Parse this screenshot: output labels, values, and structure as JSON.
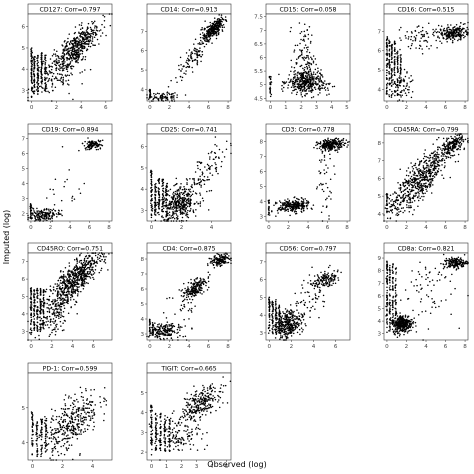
{
  "figure": {
    "xlabel": "Observed (log)",
    "ylabel": "Imputed (log)"
  },
  "chart_data": [
    {
      "type": "scatter",
      "title": "CD127: Corr=0.797",
      "xlim": [
        -0.3,
        6.5
      ],
      "ylim": [
        2.5,
        6.6
      ],
      "xticks": [
        0,
        2,
        4,
        6
      ],
      "yticks": [
        3,
        4,
        5,
        6
      ],
      "clusters": [
        {
          "x": [
            0,
            0
          ],
          "y": [
            2.6,
            5.0
          ],
          "n": 70,
          "kind": "vline"
        },
        {
          "x": [
            0.2,
            0.2
          ],
          "y": [
            2.7,
            4.6
          ],
          "n": 50,
          "kind": "vline"
        },
        {
          "x": [
            0.5,
            0.5
          ],
          "y": [
            2.8,
            4.7
          ],
          "n": 50,
          "kind": "vline"
        },
        {
          "x": [
            0.8,
            0.8
          ],
          "y": [
            2.9,
            4.8
          ],
          "n": 50,
          "kind": "vline"
        },
        {
          "x": [
            1.1,
            1.1
          ],
          "y": [
            2.9,
            4.7
          ],
          "n": 45,
          "kind": "vline"
        },
        {
          "cx": 3.6,
          "cy": 5.0,
          "sx": 0.9,
          "sy": 0.55,
          "rho": 0.75,
          "n": 450
        },
        {
          "cx": 2.0,
          "cy": 3.7,
          "sx": 1.0,
          "sy": 0.5,
          "rho": 0.3,
          "n": 120
        }
      ]
    },
    {
      "type": "scatter",
      "title": "CD14: Corr=0.913",
      "xlim": [
        -0.3,
        8.3
      ],
      "ylim": [
        3.4,
        7.9
      ],
      "xticks": [
        0,
        2,
        4,
        6,
        8
      ],
      "yticks": [
        4,
        5,
        6,
        7
      ],
      "clusters": [
        {
          "x": [
            0,
            0
          ],
          "y": [
            3.5,
            4.0
          ],
          "n": 30,
          "kind": "vline"
        },
        {
          "cx": 1.5,
          "cy": 3.6,
          "sx": 0.9,
          "sy": 0.12,
          "rho": 0.1,
          "n": 80
        },
        {
          "cx": 6.5,
          "cy": 7.1,
          "sx": 0.55,
          "sy": 0.3,
          "rho": 0.7,
          "n": 260
        },
        {
          "cx": 4.5,
          "cy": 5.7,
          "sx": 1.0,
          "sy": 0.65,
          "rho": 0.85,
          "n": 110
        }
      ]
    },
    {
      "type": "scatter",
      "title": "CD15: Corr=0.058",
      "xlim": [
        -0.3,
        5.2
      ],
      "ylim": [
        4.4,
        7.6
      ],
      "xticks": [
        0,
        1,
        2,
        3,
        4,
        5
      ],
      "yticks": [
        4.5,
        5.0,
        5.5,
        6.0,
        6.5,
        7.0,
        7.5
      ],
      "clusters": [
        {
          "x": [
            0,
            0
          ],
          "y": [
            4.5,
            5.3
          ],
          "n": 25,
          "kind": "vline"
        },
        {
          "cx": 2.2,
          "cy": 5.1,
          "sx": 0.55,
          "sy": 0.22,
          "rho": 0.0,
          "n": 300
        },
        {
          "cx": 2.2,
          "cy": 6.0,
          "sx": 0.35,
          "sy": 0.6,
          "rho": 0.0,
          "n": 110
        },
        {
          "cx": 3.0,
          "cy": 5.0,
          "sx": 0.6,
          "sy": 0.2,
          "rho": 0.0,
          "n": 60
        }
      ]
    },
    {
      "type": "scatter",
      "title": "CD16: Corr=0.515",
      "xlim": [
        -0.3,
        8.3
      ],
      "ylim": [
        3.4,
        7.9
      ],
      "xticks": [
        0,
        2,
        4,
        6,
        8
      ],
      "yticks": [
        4,
        5,
        6,
        7
      ],
      "clusters": [
        {
          "x": [
            0,
            0
          ],
          "y": [
            3.6,
            6.8
          ],
          "n": 60,
          "kind": "vline"
        },
        {
          "x": [
            0.25,
            0.25
          ],
          "y": [
            3.6,
            6.6
          ],
          "n": 45,
          "kind": "vline"
        },
        {
          "x": [
            0.5,
            0.5
          ],
          "y": [
            3.6,
            6.4
          ],
          "n": 45,
          "kind": "vline"
        },
        {
          "x": [
            0.8,
            0.8
          ],
          "y": [
            3.6,
            6.5
          ],
          "n": 45,
          "kind": "vline"
        },
        {
          "x": [
            1.1,
            1.1
          ],
          "y": [
            3.6,
            6.0
          ],
          "n": 40,
          "kind": "vline"
        },
        {
          "x": [
            1.4,
            1.4
          ],
          "y": [
            3.6,
            5.8
          ],
          "n": 30,
          "kind": "vline"
        },
        {
          "cx": 6.8,
          "cy": 6.9,
          "sx": 0.75,
          "sy": 0.18,
          "rho": 0.1,
          "n": 220
        },
        {
          "cx": 3.5,
          "cy": 6.8,
          "sx": 1.2,
          "sy": 0.35,
          "rho": 0.2,
          "n": 70
        },
        {
          "cx": 1.6,
          "cy": 4.2,
          "sx": 0.6,
          "sy": 0.4,
          "rho": 0.1,
          "n": 60
        }
      ]
    },
    {
      "type": "scatter",
      "title": "CD19: Corr=0.894",
      "xlim": [
        -0.3,
        8.3
      ],
      "ylim": [
        1.5,
        7.3
      ],
      "xticks": [
        0,
        2,
        4,
        6,
        8
      ],
      "yticks": [
        2,
        3,
        4,
        5,
        6,
        7
      ],
      "clusters": [
        {
          "x": [
            0,
            0
          ],
          "y": [
            1.6,
            2.7
          ],
          "n": 30,
          "kind": "vline"
        },
        {
          "cx": 1.3,
          "cy": 1.9,
          "sx": 0.8,
          "sy": 0.2,
          "rho": 0.1,
          "n": 160
        },
        {
          "cx": 6.3,
          "cy": 6.6,
          "sx": 0.45,
          "sy": 0.16,
          "rho": 0.3,
          "n": 110
        },
        {
          "cx": 3.8,
          "cy": 3.7,
          "sx": 1.0,
          "sy": 0.8,
          "rho": 0.3,
          "n": 18
        }
      ]
    },
    {
      "type": "scatter",
      "title": "CD25: Corr=0.741",
      "xlim": [
        -0.3,
        5.3
      ],
      "ylim": [
        2.5,
        6.6
      ],
      "xticks": [
        0,
        2,
        4
      ],
      "yticks": [
        3,
        4,
        5,
        6
      ],
      "clusters": [
        {
          "x": [
            0,
            0
          ],
          "y": [
            2.6,
            4.9
          ],
          "n": 60,
          "kind": "vline"
        },
        {
          "x": [
            0.25,
            0.25
          ],
          "y": [
            2.7,
            4.4
          ],
          "n": 45,
          "kind": "vline"
        },
        {
          "x": [
            0.5,
            0.5
          ],
          "y": [
            2.8,
            4.5
          ],
          "n": 45,
          "kind": "vline"
        },
        {
          "x": [
            0.75,
            0.75
          ],
          "y": [
            2.8,
            4.5
          ],
          "n": 40,
          "kind": "vline"
        },
        {
          "x": [
            1.0,
            1.0
          ],
          "y": [
            2.8,
            4.3
          ],
          "n": 35,
          "kind": "vline"
        },
        {
          "cx": 1.9,
          "cy": 3.3,
          "sx": 0.6,
          "sy": 0.4,
          "rho": 0.3,
          "n": 380
        },
        {
          "cx": 3.6,
          "cy": 4.8,
          "sx": 0.8,
          "sy": 0.65,
          "rho": 0.7,
          "n": 100
        }
      ]
    },
    {
      "type": "scatter",
      "title": "CD3: Corr=0.778",
      "xlim": [
        -0.3,
        8.3
      ],
      "ylim": [
        2.7,
        8.5
      ],
      "xticks": [
        0,
        2,
        4,
        6,
        8
      ],
      "yticks": [
        3,
        4,
        5,
        6,
        7,
        8
      ],
      "clusters": [
        {
          "x": [
            0,
            0
          ],
          "y": [
            3.1,
            4.1
          ],
          "n": 20,
          "kind": "vline"
        },
        {
          "cx": 2.5,
          "cy": 3.7,
          "sx": 0.8,
          "sy": 0.22,
          "rho": 0.2,
          "n": 260
        },
        {
          "cx": 6.4,
          "cy": 7.8,
          "sx": 0.7,
          "sy": 0.18,
          "rho": 0.2,
          "n": 240
        },
        {
          "cx": 5.8,
          "cy": 5.5,
          "sx": 0.5,
          "sy": 1.1,
          "rho": 0.1,
          "n": 45
        }
      ]
    },
    {
      "type": "scatter",
      "title": "CD45RA: Corr=0.799",
      "xlim": [
        -0.3,
        8.3
      ],
      "ylim": [
        3.6,
        8.5
      ],
      "xticks": [
        0,
        2,
        4,
        6,
        8
      ],
      "yticks": [
        4,
        5,
        6,
        7,
        8
      ],
      "clusters": [
        {
          "x": [
            0,
            0
          ],
          "y": [
            3.9,
            5.2
          ],
          "n": 25,
          "kind": "vline"
        },
        {
          "cx": 3.5,
          "cy": 6.0,
          "sx": 1.6,
          "sy": 1.0,
          "rho": 0.85,
          "n": 620
        },
        {
          "cx": 6.8,
          "cy": 7.9,
          "sx": 0.6,
          "sy": 0.25,
          "rho": 0.5,
          "n": 160
        }
      ]
    },
    {
      "type": "scatter",
      "title": "CD45RO: Corr=0.751",
      "xlim": [
        -0.3,
        7.8
      ],
      "ylim": [
        2.5,
        7.5
      ],
      "xticks": [
        0,
        2,
        4,
        6
      ],
      "yticks": [
        3,
        4,
        5,
        6,
        7
      ],
      "clusters": [
        {
          "x": [
            0,
            0
          ],
          "y": [
            2.8,
            5.5
          ],
          "n": 60,
          "kind": "vline"
        },
        {
          "x": [
            0.3,
            0.3
          ],
          "y": [
            2.9,
            5.4
          ],
          "n": 45,
          "kind": "vline"
        },
        {
          "x": [
            0.6,
            0.6
          ],
          "y": [
            3.0,
            5.5
          ],
          "n": 45,
          "kind": "vline"
        },
        {
          "x": [
            0.9,
            0.9
          ],
          "y": [
            3.0,
            5.5
          ],
          "n": 45,
          "kind": "vline"
        },
        {
          "x": [
            1.2,
            1.2
          ],
          "y": [
            3.0,
            5.4
          ],
          "n": 40,
          "kind": "vline"
        },
        {
          "cx": 4.3,
          "cy": 6.0,
          "sx": 1.3,
          "sy": 0.8,
          "rho": 0.8,
          "n": 620
        },
        {
          "cx": 2.0,
          "cy": 4.0,
          "sx": 0.9,
          "sy": 0.7,
          "rho": 0.4,
          "n": 150
        }
      ]
    },
    {
      "type": "scatter",
      "title": "CD4: Corr=0.875",
      "xlim": [
        -0.3,
        8.3
      ],
      "ylim": [
        2.6,
        8.4
      ],
      "xticks": [
        0,
        2,
        4,
        6,
        8
      ],
      "yticks": [
        3,
        4,
        5,
        6,
        7,
        8
      ],
      "clusters": [
        {
          "x": [
            0,
            0
          ],
          "y": [
            2.8,
            4.0
          ],
          "n": 25,
          "kind": "vline"
        },
        {
          "x": [
            0.3,
            0.3
          ],
          "y": [
            2.9,
            3.8
          ],
          "n": 20,
          "kind": "vline"
        },
        {
          "cx": 1.5,
          "cy": 3.2,
          "sx": 0.7,
          "sy": 0.25,
          "rho": 0.2,
          "n": 160
        },
        {
          "cx": 4.6,
          "cy": 6.0,
          "sx": 0.55,
          "sy": 0.35,
          "rho": 0.6,
          "n": 190
        },
        {
          "cx": 7.2,
          "cy": 7.9,
          "sx": 0.5,
          "sy": 0.2,
          "rho": 0.3,
          "n": 140
        },
        {
          "cx": 3.5,
          "cy": 4.3,
          "sx": 1.2,
          "sy": 1.0,
          "rho": 0.3,
          "n": 40
        }
      ]
    },
    {
      "type": "scatter",
      "title": "CD56: Corr=0.797",
      "xlim": [
        -0.3,
        7.3
      ],
      "ylim": [
        2.6,
        7.5
      ],
      "xticks": [
        0,
        2,
        4,
        6
      ],
      "yticks": [
        3,
        4,
        5,
        6,
        7
      ],
      "clusters": [
        {
          "x": [
            0,
            0
          ],
          "y": [
            2.8,
            5.0
          ],
          "n": 45,
          "kind": "vline"
        },
        {
          "x": [
            0.3,
            0.3
          ],
          "y": [
            2.9,
            4.8
          ],
          "n": 40,
          "kind": "vline"
        },
        {
          "x": [
            0.6,
            0.6
          ],
          "y": [
            2.9,
            4.9
          ],
          "n": 40,
          "kind": "vline"
        },
        {
          "x": [
            0.9,
            0.9
          ],
          "y": [
            2.9,
            4.6
          ],
          "n": 35,
          "kind": "vline"
        },
        {
          "cx": 1.7,
          "cy": 3.5,
          "sx": 0.55,
          "sy": 0.4,
          "rho": 0.2,
          "n": 320
        },
        {
          "cx": 5.1,
          "cy": 6.0,
          "sx": 0.55,
          "sy": 0.2,
          "rho": 0.3,
          "n": 130
        },
        {
          "cx": 3.3,
          "cy": 4.7,
          "sx": 0.9,
          "sy": 0.8,
          "rho": 0.5,
          "n": 70
        }
      ]
    },
    {
      "type": "scatter",
      "title": "CD8a: Corr=0.821",
      "xlim": [
        -0.3,
        8.3
      ],
      "ylim": [
        2.5,
        9.4
      ],
      "xticks": [
        0,
        2,
        4,
        6,
        8
      ],
      "yticks": [
        3,
        4,
        5,
        6,
        7,
        8,
        9
      ],
      "clusters": [
        {
          "x": [
            0,
            0
          ],
          "y": [
            2.8,
            8.8
          ],
          "n": 70,
          "kind": "vline"
        },
        {
          "x": [
            0.3,
            0.3
          ],
          "y": [
            2.9,
            8.5
          ],
          "n": 50,
          "kind": "vline"
        },
        {
          "x": [
            0.6,
            0.6
          ],
          "y": [
            3.0,
            8.6
          ],
          "n": 50,
          "kind": "vline"
        },
        {
          "x": [
            0.9,
            0.9
          ],
          "y": [
            3.0,
            8.4
          ],
          "n": 45,
          "kind": "vline"
        },
        {
          "cx": 1.6,
          "cy": 3.8,
          "sx": 0.5,
          "sy": 0.35,
          "rho": 0.1,
          "n": 320
        },
        {
          "cx": 7.0,
          "cy": 8.6,
          "sx": 0.6,
          "sy": 0.22,
          "rho": 0.2,
          "n": 170
        },
        {
          "cx": 4.0,
          "cy": 6.5,
          "sx": 1.5,
          "sy": 1.5,
          "rho": 0.2,
          "n": 70
        }
      ]
    },
    {
      "type": "scatter",
      "title": "PD-1: Corr=0.599",
      "xlim": [
        -0.3,
        5.3
      ],
      "ylim": [
        3.5,
        6.0
      ],
      "xticks": [
        0,
        2,
        4
      ],
      "yticks": [
        4,
        5
      ],
      "clusters": [
        {
          "x": [
            0,
            0
          ],
          "y": [
            3.6,
            4.9
          ],
          "n": 40,
          "kind": "vline"
        },
        {
          "x": [
            0.3,
            0.3
          ],
          "y": [
            3.6,
            4.6
          ],
          "n": 35,
          "kind": "vline"
        },
        {
          "x": [
            0.6,
            0.6
          ],
          "y": [
            3.6,
            4.7
          ],
          "n": 35,
          "kind": "vline"
        },
        {
          "x": [
            0.9,
            0.9
          ],
          "y": [
            3.6,
            4.7
          ],
          "n": 30,
          "kind": "vline"
        },
        {
          "cx": 2.6,
          "cy": 4.6,
          "sx": 0.9,
          "sy": 0.45,
          "rho": 0.6,
          "n": 360
        }
      ]
    },
    {
      "type": "scatter",
      "title": "TIGIT: Corr=0.665",
      "xlim": [
        -0.3,
        5.3
      ],
      "ylim": [
        1.6,
        6.0
      ],
      "xticks": [
        0,
        1,
        2,
        3,
        4,
        5
      ],
      "yticks": [
        2,
        3,
        4,
        5
      ],
      "clusters": [
        {
          "x": [
            0,
            0
          ],
          "y": [
            1.8,
            4.4
          ],
          "n": 50,
          "kind": "vline"
        },
        {
          "x": [
            0.3,
            0.3
          ],
          "y": [
            1.9,
            4.0
          ],
          "n": 40,
          "kind": "vline"
        },
        {
          "x": [
            0.6,
            0.6
          ],
          "y": [
            2.0,
            4.0
          ],
          "n": 40,
          "kind": "vline"
        },
        {
          "x": [
            0.9,
            0.9
          ],
          "y": [
            2.0,
            3.9
          ],
          "n": 35,
          "kind": "vline"
        },
        {
          "x": [
            1.2,
            1.2
          ],
          "y": [
            2.0,
            3.8
          ],
          "n": 30,
          "kind": "vline"
        },
        {
          "cx": 3.3,
          "cy": 4.5,
          "sx": 0.65,
          "sy": 0.45,
          "rho": 0.6,
          "n": 260
        },
        {
          "cx": 1.9,
          "cy": 2.8,
          "sx": 0.7,
          "sy": 0.45,
          "rho": 0.2,
          "n": 120
        }
      ]
    }
  ]
}
